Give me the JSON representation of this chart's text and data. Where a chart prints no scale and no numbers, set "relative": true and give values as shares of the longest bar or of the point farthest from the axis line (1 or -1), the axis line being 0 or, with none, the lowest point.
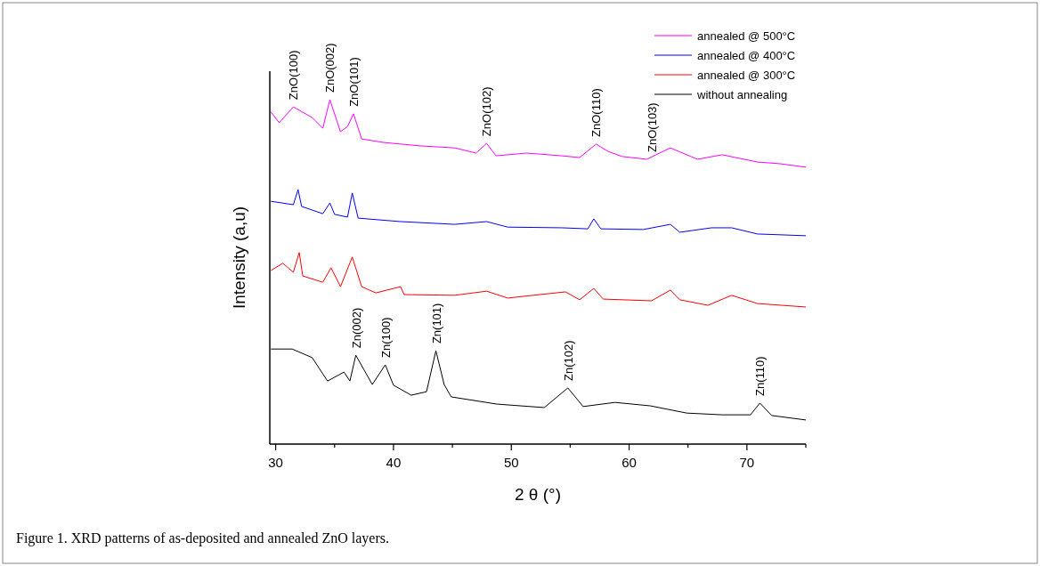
{
  "chart_data": {
    "type": "line",
    "relative": true,
    "xlabel": "2 θ (°)",
    "ylabel": "Intensity (a,u)",
    "xlim": [
      29.5,
      75
    ],
    "xticks": [
      30,
      {
        "value": 35,
        "label": null
      },
      40,
      {
        "value": 45,
        "label": null
      },
      50,
      {
        "value": 55,
        "label": null
      },
      60,
      {
        "value": 65,
        "label": null
      },
      70,
      {
        "value": 75,
        "label": null
      }
    ],
    "legend": "top right",
    "grid": false,
    "marker": "none",
    "line_style": "solid",
    "series": [
      {
        "name": "annealed @ 500°C",
        "color": "#ff00ff",
        "x": [
          29.6,
          30.3,
          31.5,
          33.1,
          34.0,
          34.6,
          35.5,
          36.1,
          36.6,
          37.3,
          39.1,
          42.2,
          45.2,
          47.0,
          47.9,
          48.7,
          51.3,
          54.3,
          55.8,
          57.2,
          58.2,
          59.4,
          61.5,
          63.5,
          65.8,
          67.9,
          70.9,
          72.8,
          75.0
        ],
        "values": [
          0.964,
          0.933,
          0.979,
          0.948,
          0.917,
          1,
          0.907,
          0.922,
          0.959,
          0.886,
          0.876,
          0.866,
          0.86,
          0.845,
          0.873,
          0.837,
          0.845,
          0.837,
          0.832,
          0.871,
          0.85,
          0.835,
          0.827,
          0.86,
          0.827,
          0.84,
          0.819,
          0.814,
          0.804
        ]
      },
      {
        "name": "annealed @ 400°C",
        "color": "#0000ff",
        "x": [
          29.6,
          31.5,
          31.9,
          32.2,
          34.0,
          34.6,
          35.0,
          36.1,
          36.5,
          37.0,
          40.6,
          45.2,
          47.9,
          49.7,
          54.3,
          56.5,
          57.0,
          57.6,
          61.2,
          63.5,
          64.3,
          67.0,
          68.7,
          70.9,
          75.0
        ],
        "values": [
          0.705,
          0.695,
          0.739,
          0.69,
          0.669,
          0.7,
          0.667,
          0.659,
          0.729,
          0.656,
          0.646,
          0.638,
          0.646,
          0.63,
          0.628,
          0.625,
          0.654,
          0.625,
          0.623,
          0.638,
          0.615,
          0.628,
          0.628,
          0.61,
          0.605
        ]
      },
      {
        "name": "annealed @ 300°C",
        "color": "#ff0000",
        "x": [
          29.6,
          30.6,
          31.5,
          32.0,
          32.3,
          34.0,
          34.7,
          35.5,
          36.5,
          37.3,
          38.5,
          40.6,
          40.9,
          45.2,
          47.9,
          49.7,
          54.6,
          55.8,
          57.0,
          57.8,
          61.9,
          63.5,
          64.3,
          66.7,
          68.7,
          70.9,
          75.0
        ],
        "values": [
          0.504,
          0.525,
          0.499,
          0.556,
          0.488,
          0.47,
          0.512,
          0.457,
          0.543,
          0.457,
          0.439,
          0.457,
          0.434,
          0.432,
          0.444,
          0.424,
          0.442,
          0.419,
          0.452,
          0.421,
          0.416,
          0.447,
          0.419,
          0.403,
          0.432,
          0.408,
          0.398
        ]
      },
      {
        "name": "without annealing",
        "color": "#000000",
        "x": [
          29.6,
          31.4,
          33.1,
          34.4,
          35.8,
          36.3,
          36.8,
          38.2,
          39.3,
          40.0,
          41.5,
          42.8,
          43.6,
          44.3,
          44.9,
          48.8,
          52.8,
          54.8,
          56.1,
          58.8,
          61.8,
          64.9,
          67.9,
          70.3,
          71.1,
          72.1,
          75.0
        ],
        "values": [
          0.276,
          0.276,
          0.251,
          0.183,
          0.209,
          0.183,
          0.258,
          0.173,
          0.23,
          0.171,
          0.142,
          0.152,
          0.271,
          0.173,
          0.137,
          0.116,
          0.106,
          0.163,
          0.109,
          0.121,
          0.111,
          0.09,
          0.085,
          0.085,
          0.119,
          0.083,
          0.07
        ]
      }
    ],
    "annotations": [
      {
        "text": "ZnO(100)",
        "x": 31.5,
        "y": 0.979
      },
      {
        "text": "ZnO(002)",
        "x": 34.6,
        "y": 1
      },
      {
        "text": "ZnO(101)",
        "x": 36.6,
        "y": 0.959
      },
      {
        "text": "ZnO(102)",
        "x": 47.9,
        "y": 0.873
      },
      {
        "text": "ZnO(110)",
        "x": 57.2,
        "y": 0.871
      },
      {
        "text": "ZnO(103)",
        "x": 61.9,
        "y": 0.827
      },
      {
        "text": "Zn(002)",
        "x": 36.8,
        "y": 0.258
      },
      {
        "text": "Zn(100)",
        "x": 39.3,
        "y": 0.23
      },
      {
        "text": "Zn(101)",
        "x": 43.6,
        "y": 0.271
      },
      {
        "text": "Zn(102)",
        "x": 54.8,
        "y": 0.163
      },
      {
        "text": "Zn(110)",
        "x": 71.1,
        "y": 0.119
      },
      "Figure 1. XRD patterns of as-deposited and annealed ZnO layers."
    ]
  }
}
